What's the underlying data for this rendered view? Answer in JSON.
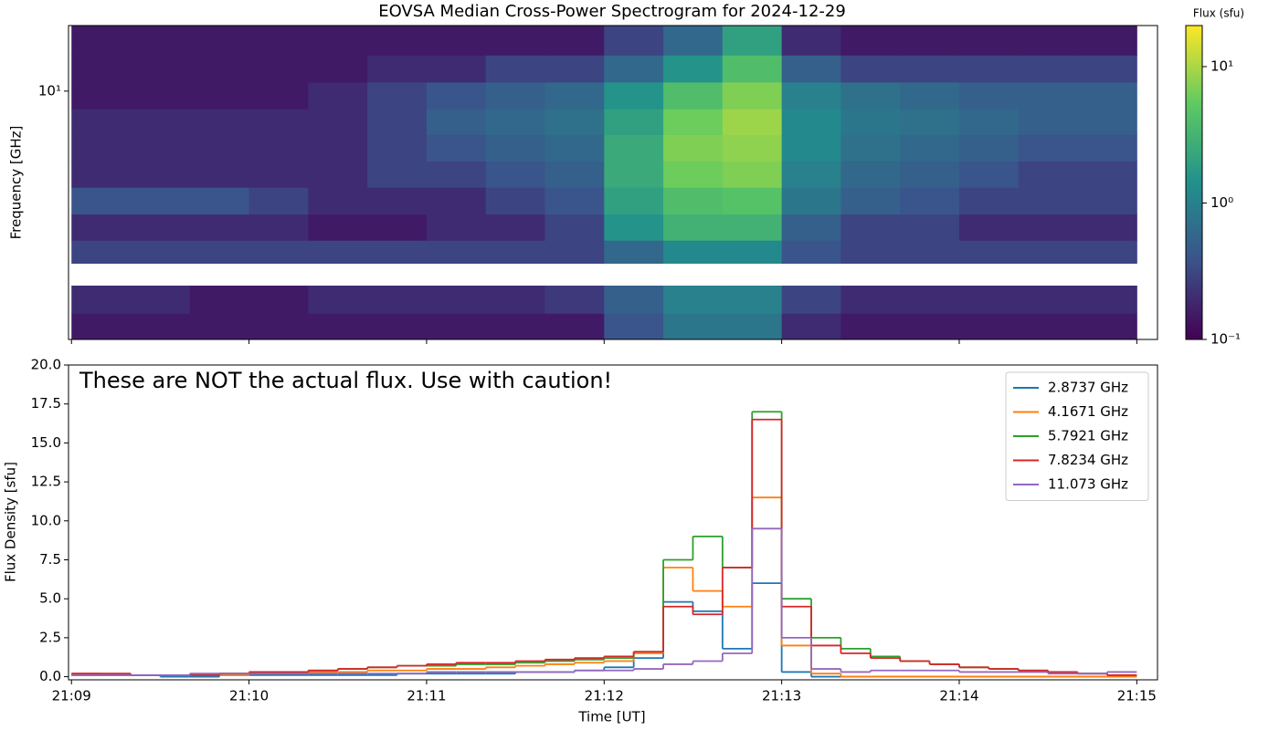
{
  "chart_data": [
    {
      "type": "heatmap",
      "title": "EOVSA Median Cross-Power Spectrogram for 2024-12-29",
      "y_label": "Frequency [GHz]",
      "colorbar_label": "Flux (sfu)",
      "log_y": true,
      "ylim": [
        1.2,
        17.5
      ],
      "yticks": [
        {
          "value": 10,
          "label": "10¹"
        }
      ],
      "xlim": [
        "21:08:59",
        "21:15:07"
      ],
      "xticks": [
        "21:09",
        "21:10",
        "21:11",
        "21:12",
        "21:13",
        "21:14",
        "21:15"
      ],
      "bins": [
        "21:09:00",
        "21:09:20",
        "21:09:40",
        "21:10:00",
        "21:10:20",
        "21:10:40",
        "21:11:00",
        "21:11:20",
        "21:11:40",
        "21:12:00",
        "21:12:20",
        "21:12:40",
        "21:13:00",
        "21:13:20",
        "21:13:40",
        "21:14:00",
        "21:14:20",
        "21:14:40",
        "21:15:00"
      ],
      "y_edges": [
        1.2,
        1.5,
        1.9,
        2.3,
        2.8,
        3.5,
        4.4,
        5.5,
        6.9,
        8.6,
        10.8,
        13.6,
        17.5
      ],
      "clim": [
        0.1,
        20
      ],
      "cticks": [
        {
          "value": 0.1,
          "label": "10⁻¹"
        },
        {
          "value": 1,
          "label": "10⁰"
        },
        {
          "value": 10,
          "label": "10¹"
        }
      ],
      "rows": [
        [
          0.15,
          0.15,
          0.15,
          0.15,
          0.15,
          0.15,
          0.15,
          0.15,
          0.15,
          0.4,
          0.8,
          0.8,
          0.2,
          0.15,
          0.15,
          0.15,
          0.15,
          0.15
        ],
        [
          0.2,
          0.2,
          0.15,
          0.15,
          0.2,
          0.2,
          0.2,
          0.2,
          0.25,
          0.5,
          1.0,
          1.0,
          0.3,
          0.2,
          0.2,
          0.2,
          0.2,
          0.2
        ],
        [
          null,
          null,
          null,
          null,
          null,
          null,
          null,
          null,
          null,
          null,
          null,
          null,
          null,
          null,
          null,
          null,
          null,
          null
        ],
        [
          0.3,
          0.3,
          0.3,
          0.3,
          0.3,
          0.3,
          0.3,
          0.3,
          0.3,
          0.6,
          1.2,
          1.2,
          0.4,
          0.3,
          0.3,
          0.3,
          0.3,
          0.3
        ],
        [
          0.2,
          0.2,
          0.2,
          0.2,
          0.15,
          0.15,
          0.2,
          0.2,
          0.3,
          1.5,
          3.0,
          3.0,
          0.5,
          0.3,
          0.3,
          0.2,
          0.2,
          0.2
        ],
        [
          0.4,
          0.4,
          0.4,
          0.3,
          0.2,
          0.2,
          0.2,
          0.3,
          0.4,
          2.0,
          4.0,
          4.5,
          0.8,
          0.5,
          0.4,
          0.3,
          0.3,
          0.3
        ],
        [
          0.2,
          0.2,
          0.2,
          0.2,
          0.2,
          0.3,
          0.3,
          0.4,
          0.5,
          2.5,
          6.0,
          7.0,
          1.0,
          0.6,
          0.5,
          0.4,
          0.3,
          0.3
        ],
        [
          0.2,
          0.2,
          0.2,
          0.2,
          0.2,
          0.3,
          0.4,
          0.5,
          0.6,
          2.5,
          7.0,
          8.0,
          1.2,
          0.7,
          0.6,
          0.5,
          0.4,
          0.4
        ],
        [
          0.2,
          0.2,
          0.2,
          0.2,
          0.2,
          0.3,
          0.5,
          0.6,
          0.7,
          2.0,
          6.0,
          9.0,
          1.2,
          0.8,
          0.7,
          0.6,
          0.5,
          0.5
        ],
        [
          0.15,
          0.15,
          0.15,
          0.15,
          0.2,
          0.3,
          0.4,
          0.5,
          0.6,
          1.5,
          4.0,
          7.0,
          1.0,
          0.7,
          0.6,
          0.5,
          0.5,
          0.5
        ],
        [
          0.15,
          0.15,
          0.15,
          0.15,
          0.15,
          0.2,
          0.2,
          0.3,
          0.3,
          0.6,
          1.5,
          4.0,
          0.5,
          0.3,
          0.3,
          0.3,
          0.3,
          0.3
        ],
        [
          0.15,
          0.15,
          0.15,
          0.15,
          0.15,
          0.15,
          0.15,
          0.15,
          0.15,
          0.3,
          0.6,
          2.0,
          0.2,
          0.15,
          0.15,
          0.15,
          0.15,
          0.15
        ]
      ]
    },
    {
      "type": "line",
      "x_label": "Time [UT]",
      "y_label": "Flux Density [sfu]",
      "annotation": "These are NOT the actual flux. Use with caution!",
      "step": true,
      "legend": "upper right",
      "xlim": [
        "21:08:59",
        "21:15:07"
      ],
      "xticks": [
        "21:09",
        "21:10",
        "21:11",
        "21:12",
        "21:13",
        "21:14",
        "21:15"
      ],
      "ylim": [
        -0.2,
        20
      ],
      "yticks": [
        {
          "value": 0,
          "label": "0.0"
        },
        2.5,
        {
          "value": 5,
          "label": "5.0"
        },
        7.5,
        {
          "value": 10,
          "label": "10.0"
        },
        12.5,
        {
          "value": 15,
          "label": "15.0"
        },
        17.5,
        {
          "value": 20,
          "label": "20.0"
        }
      ],
      "x": [
        "21:09:00",
        "21:09:10",
        "21:09:20",
        "21:09:30",
        "21:09:40",
        "21:09:50",
        "21:10:00",
        "21:10:10",
        "21:10:20",
        "21:10:30",
        "21:10:40",
        "21:10:50",
        "21:11:00",
        "21:11:10",
        "21:11:20",
        "21:11:30",
        "21:11:40",
        "21:11:50",
        "21:12:00",
        "21:12:10",
        "21:12:20",
        "21:12:30",
        "21:12:40",
        "21:12:50",
        "21:13:00",
        "21:13:10",
        "21:13:20",
        "21:13:30",
        "21:13:40",
        "21:13:50",
        "21:14:00",
        "21:14:10",
        "21:14:20",
        "21:14:30",
        "21:14:40",
        "21:14:50",
        "21:15:00"
      ],
      "series": [
        {
          "name": "2.8737 GHz",
          "color": "#1f77b4",
          "values": [
            0.1,
            0.1,
            0.1,
            0,
            0,
            0.1,
            0.1,
            0.1,
            0.1,
            0.1,
            0.1,
            0.2,
            0.2,
            0.2,
            0.2,
            0.3,
            0.3,
            0.4,
            0.6,
            1.2,
            4.8,
            4.2,
            1.8,
            6.0,
            0.3,
            0,
            0,
            0,
            0,
            0,
            0,
            0,
            0,
            0,
            0,
            0,
            0
          ]
        },
        {
          "name": "4.1671 GHz",
          "color": "#ff7f0e",
          "values": [
            0.2,
            0.1,
            0.1,
            0.1,
            0.1,
            0.1,
            0.2,
            0.2,
            0.3,
            0.3,
            0.4,
            0.4,
            0.5,
            0.5,
            0.6,
            0.7,
            0.8,
            0.9,
            1.0,
            1.5,
            7.0,
            5.5,
            4.5,
            11.5,
            2.0,
            0.2,
            0,
            0,
            0,
            0,
            0,
            0,
            0,
            0,
            0,
            0,
            0
          ]
        },
        {
          "name": "5.7921 GHz",
          "color": "#2ca02c",
          "values": [
            0.1,
            0.1,
            0.1,
            0.1,
            0.1,
            0.2,
            0.2,
            0.3,
            0.4,
            0.5,
            0.6,
            0.7,
            0.7,
            0.8,
            0.8,
            0.9,
            1.0,
            1.1,
            1.2,
            1.6,
            7.5,
            9.0,
            7.0,
            17.0,
            5.0,
            2.5,
            1.8,
            1.3,
            1.0,
            0.8,
            0.6,
            0.5,
            0.4,
            0.3,
            0.2,
            0.1,
            0.1
          ]
        },
        {
          "name": "7.8234 GHz",
          "color": "#d62728",
          "values": [
            0.2,
            0.2,
            0.1,
            0.1,
            0.1,
            0.2,
            0.3,
            0.3,
            0.4,
            0.5,
            0.6,
            0.7,
            0.8,
            0.9,
            0.9,
            1.0,
            1.1,
            1.2,
            1.3,
            1.6,
            4.5,
            4.0,
            7.0,
            16.5,
            4.5,
            2.0,
            1.5,
            1.2,
            1.0,
            0.8,
            0.6,
            0.5,
            0.4,
            0.3,
            0.2,
            0.1,
            0.1
          ]
        },
        {
          "name": "11.073 GHz",
          "color": "#9467bd",
          "values": [
            0.1,
            0.1,
            0.1,
            0.1,
            0.2,
            0.2,
            0.2,
            0.2,
            0.2,
            0.2,
            0.2,
            0.2,
            0.3,
            0.3,
            0.3,
            0.3,
            0.3,
            0.4,
            0.4,
            0.5,
            0.8,
            1.0,
            1.5,
            9.5,
            2.5,
            0.5,
            0.3,
            0.4,
            0.4,
            0.4,
            0.3,
            0.3,
            0.3,
            0.2,
            0.2,
            0.3,
            0.3
          ]
        }
      ]
    }
  ]
}
